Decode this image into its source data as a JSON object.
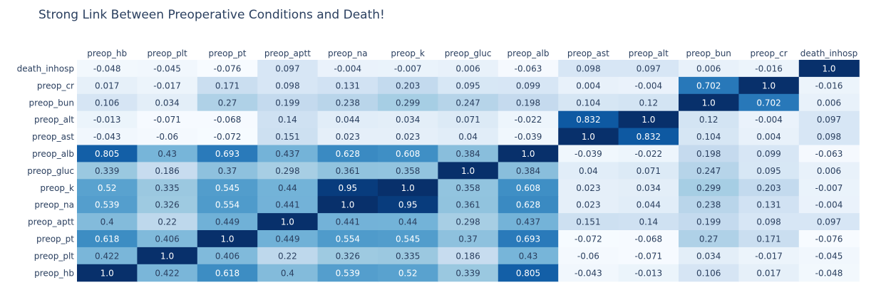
{
  "chart_data": {
    "type": "heatmap",
    "title": "Strong Link Between Preoperative Conditions and Death!",
    "x": [
      "preop_hb",
      "preop_plt",
      "preop_pt",
      "preop_aptt",
      "preop_na",
      "preop_k",
      "preop_gluc",
      "preop_alb",
      "preop_ast",
      "preop_alt",
      "preop_bun",
      "preop_cr",
      "death_inhosp"
    ],
    "y": [
      "death_inhosp",
      "preop_cr",
      "preop_bun",
      "preop_alt",
      "preop_ast",
      "preop_alb",
      "preop_gluc",
      "preop_k",
      "preop_na",
      "preop_aptt",
      "preop_pt",
      "preop_plt",
      "preop_hb"
    ],
    "z": [
      [
        "-0.048",
        "-0.045",
        "-0.076",
        "0.097",
        "-0.004",
        "-0.007",
        "0.006",
        "-0.063",
        "0.098",
        "0.097",
        "0.006",
        "-0.016",
        "1.0"
      ],
      [
        "0.017",
        "-0.017",
        "0.171",
        "0.098",
        "0.131",
        "0.203",
        "0.095",
        "0.099",
        "0.004",
        "-0.004",
        "0.702",
        "1.0",
        "-0.016"
      ],
      [
        "0.106",
        "0.034",
        "0.27",
        "0.199",
        "0.238",
        "0.299",
        "0.247",
        "0.198",
        "0.104",
        "0.12",
        "1.0",
        "0.702",
        "0.006"
      ],
      [
        "-0.013",
        "-0.071",
        "-0.068",
        "0.14",
        "0.044",
        "0.034",
        "0.071",
        "-0.022",
        "0.832",
        "1.0",
        "0.12",
        "-0.004",
        "0.097"
      ],
      [
        "-0.043",
        "-0.06",
        "-0.072",
        "0.151",
        "0.023",
        "0.023",
        "0.04",
        "-0.039",
        "1.0",
        "0.832",
        "0.104",
        "0.004",
        "0.098"
      ],
      [
        "0.805",
        "0.43",
        "0.693",
        "0.437",
        "0.628",
        "0.608",
        "0.384",
        "1.0",
        "-0.039",
        "-0.022",
        "0.198",
        "0.099",
        "-0.063"
      ],
      [
        "0.339",
        "0.186",
        "0.37",
        "0.298",
        "0.361",
        "0.358",
        "1.0",
        "0.384",
        "0.04",
        "0.071",
        "0.247",
        "0.095",
        "0.006"
      ],
      [
        "0.52",
        "0.335",
        "0.545",
        "0.44",
        "0.95",
        "1.0",
        "0.358",
        "0.608",
        "0.023",
        "0.034",
        "0.299",
        "0.203",
        "-0.007"
      ],
      [
        "0.539",
        "0.326",
        "0.554",
        "0.441",
        "1.0",
        "0.95",
        "0.361",
        "0.628",
        "0.023",
        "0.044",
        "0.238",
        "0.131",
        "-0.004"
      ],
      [
        "0.4",
        "0.22",
        "0.449",
        "1.0",
        "0.441",
        "0.44",
        "0.298",
        "0.437",
        "0.151",
        "0.14",
        "0.199",
        "0.098",
        "0.097"
      ],
      [
        "0.618",
        "0.406",
        "1.0",
        "0.449",
        "0.554",
        "0.545",
        "0.37",
        "0.693",
        "-0.072",
        "-0.068",
        "0.27",
        "0.171",
        "-0.076"
      ],
      [
        "0.422",
        "1.0",
        "0.406",
        "0.22",
        "0.326",
        "0.335",
        "0.186",
        "0.43",
        "-0.06",
        "-0.071",
        "0.034",
        "-0.017",
        "-0.045"
      ],
      [
        "1.0",
        "0.422",
        "0.618",
        "0.4",
        "0.539",
        "0.52",
        "0.339",
        "0.805",
        "-0.043",
        "-0.013",
        "0.106",
        "0.017",
        "-0.048"
      ]
    ],
    "colorscale": "Blues",
    "xaxis_position": "top",
    "grid": false,
    "colors": {
      "title": "#2a3f5f",
      "text_dark": "#2a3f5f",
      "text_light": "#ffffff"
    }
  }
}
